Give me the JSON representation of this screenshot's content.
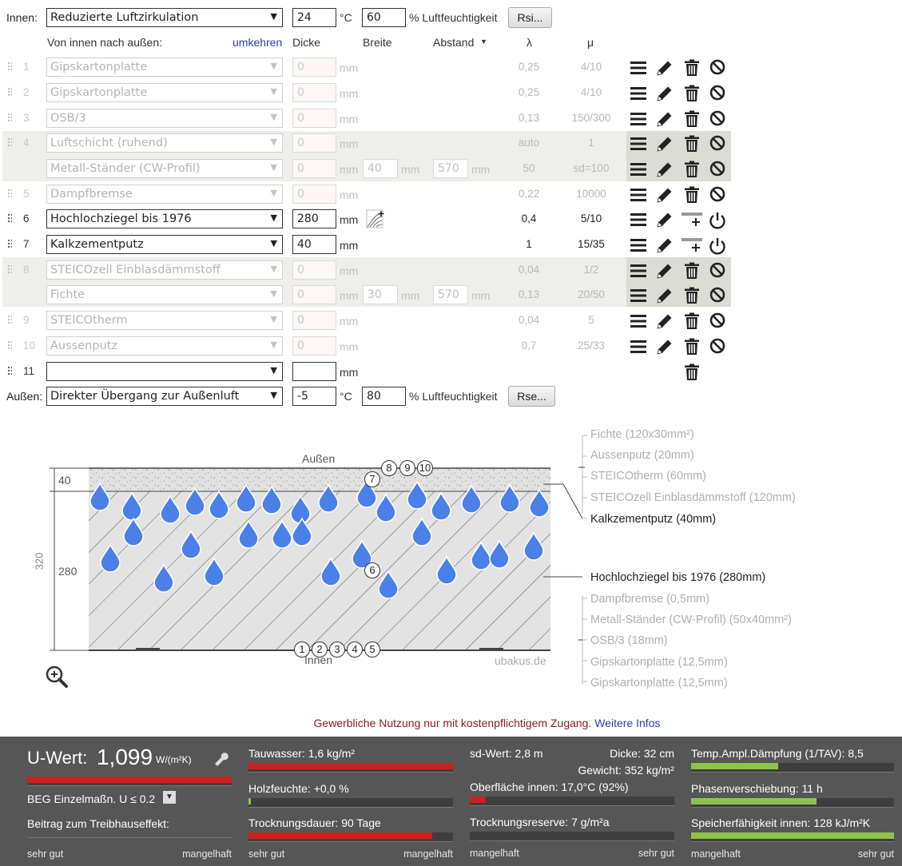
{
  "inside": {
    "label": "Innen:",
    "select": "Reduzierte Luftzirkulation",
    "temp": "24",
    "temp_unit": "°C",
    "humidity": "60",
    "humidity_unit": "% Luftfeuchtigkeit",
    "button": "Rsi..."
  },
  "headers": {
    "direction": "Von innen nach außen:",
    "reverse": "umkehren",
    "thickness": "Dicke",
    "width": "Breite",
    "distance": "Abstand",
    "lambda": "λ",
    "mu": "μ"
  },
  "unit_mm": "mm",
  "layers": [
    {
      "num": "1",
      "name": "Gipskartonplatte",
      "thickness": "0",
      "lambda": "0,25",
      "mu": "4/10"
    },
    {
      "num": "2",
      "name": "Gipskartonplatte",
      "thickness": "0",
      "lambda": "0,25",
      "mu": "4/10"
    },
    {
      "num": "3",
      "name": "OSB/3",
      "thickness": "0",
      "lambda": "0,13",
      "mu": "150/300"
    },
    {
      "num": "4",
      "name": "Luftschicht (ruhend)",
      "thickness": "0",
      "lambda": "auto",
      "mu": "1"
    },
    {
      "num": "",
      "name": "Metall-Ständer (CW-Profil)",
      "thickness": "0",
      "width": "40",
      "distance": "570",
      "lambda": "50",
      "mu": "sd=100"
    },
    {
      "num": "5",
      "name": "Dampfbremse",
      "thickness": "0",
      "lambda": "0,22",
      "mu": "10000"
    },
    {
      "num": "6",
      "name": "Hochlochziegel bis 1976",
      "thickness": "280",
      "lambda": "0,4",
      "mu": "5/10"
    },
    {
      "num": "7",
      "name": "Kalkzementputz",
      "thickness": "40",
      "lambda": "1",
      "mu": "15/35"
    },
    {
      "num": "8",
      "name": "STEICOzell Einblasdämmstoff",
      "thickness": "0",
      "lambda": "0,04",
      "mu": "1/2"
    },
    {
      "num": "",
      "name": "Fichte",
      "thickness": "0",
      "width": "30",
      "distance": "570",
      "lambda": "0,13",
      "mu": "20/50"
    },
    {
      "num": "9",
      "name": "STEICOtherm",
      "thickness": "0",
      "lambda": "0,04",
      "mu": "5"
    },
    {
      "num": "10",
      "name": "Aussenputz",
      "thickness": "0",
      "lambda": "0,7",
      "mu": "25/33"
    },
    {
      "num": "11",
      "name": "",
      "thickness": "",
      "lambda": "",
      "mu": ""
    }
  ],
  "outside": {
    "label": "Außen:",
    "select": "Direkter Übergang zur Außenluft",
    "temp": "-5",
    "temp_unit": "°C",
    "humidity": "80",
    "humidity_unit": "% Luftfeuchtigkeit",
    "button": "Rse..."
  },
  "diagram": {
    "top_label": "Außen",
    "bottom_label": "Innen",
    "watermark": "ubakus.de",
    "dim_total": "320",
    "dim_top": "40",
    "dim_mid": "280",
    "markers_top": [
      "8",
      "9",
      "10"
    ],
    "marker_7": "7",
    "marker_6": "6",
    "markers_bottom": [
      "1",
      "2",
      "3",
      "4",
      "5"
    ],
    "legend_top": [
      "Fichte (120x30mm²)",
      "Aussenputz (20mm)",
      "STEICOtherm (60mm)",
      "STEICOzell Einblasdämmstoff (120mm)"
    ],
    "legend_kalk": "Kalkzementputz (40mm)",
    "legend_ziegel": "Hochlochziegel bis 1976 (280mm)",
    "legend_bottom": [
      "Dampfbremse (0,5mm)",
      "Metall-Ständer (CW-Profil) (50x40mm²)",
      "OSB/3 (18mm)",
      "Gipskartonplatte (12,5mm)",
      "Gipskartonplatte (12,5mm)"
    ]
  },
  "notice": {
    "text": "Gewerbliche Nutzung nur mit kostenpflichtigem Zugang.",
    "link": "Weitere Infos"
  },
  "results": {
    "u_label": "U-Wert:",
    "u_value": "1,099",
    "u_unit": "W/(m²K)",
    "u_fill": 1.0,
    "beg": "BEG Einzelmaßn. U ≤ 0.2",
    "treibhaus": "Beitrag zum Treibhauseffekt:",
    "tauwasser": "Tauwasser: 1,6 kg/m²",
    "tauwasser_fill": 1.0,
    "holzfeuchte": "Holzfeuchte: +0,0 %",
    "holzfeuchte_fill": 0.01,
    "trocknung": "Trocknungsdauer: 90 Tage",
    "trocknung_fill": 0.9,
    "sd": "sd-Wert: 2,8 m",
    "dicke": "Dicke: 32 cm",
    "gewicht": "Gewicht: 352 kg/m²",
    "oberflaeche": "Oberfläche innen: 17,0°C (92%)",
    "oberflaeche_fill": 0.08,
    "trocknungsreserve": "Trocknungsreserve: 7 g/m²a",
    "trocknungsreserve_fill": 0.0,
    "amplitude": "Temp.Ampl.Dämpfung (1/TAV): 8,5",
    "amplitude_fill": 0.43,
    "phase": "Phasenverschiebung: 11 h",
    "phase_fill": 0.62,
    "speicher": "Speicherfähigkeit innen: 128 kJ/m²K",
    "speicher_fill": 1.0,
    "sehr_gut": "sehr gut",
    "mangelhaft": "mangelhaft",
    "color_bad": "#cc1f1f",
    "color_good": "#8fc24a"
  }
}
